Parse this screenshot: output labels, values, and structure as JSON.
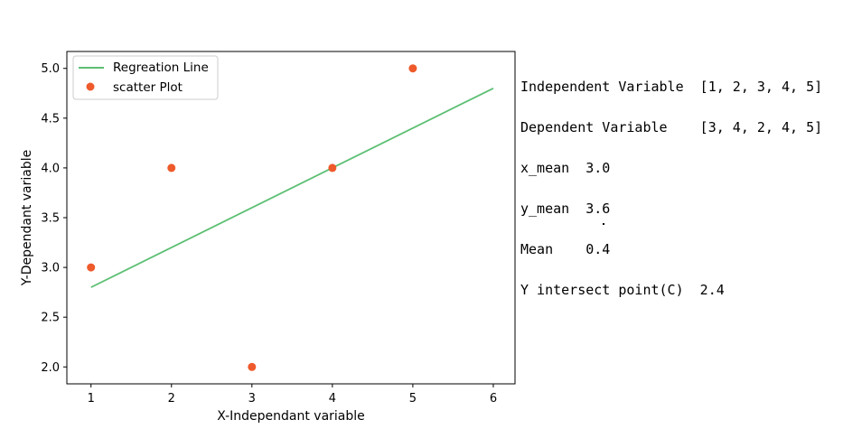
{
  "chart_data": {
    "type": "scatter",
    "title": "",
    "xlabel": "X-Independant variable",
    "ylabel": "Y-Dependant variable",
    "xlim": [
      0.7,
      6.27
    ],
    "ylim": [
      1.83,
      5.17
    ],
    "xticks": [
      "1",
      "2",
      "3",
      "4",
      "5",
      "6"
    ],
    "yticks": [
      "2.0",
      "2.5",
      "3.0",
      "3.5",
      "4.0",
      "4.5",
      "5.0"
    ],
    "grid": false,
    "legend_position": "top-left",
    "series": [
      {
        "name": "Regreation Line",
        "kind": "line",
        "color": "#5cbf73",
        "x": [
          1,
          6
        ],
        "y": [
          2.8,
          4.8
        ]
      },
      {
        "name": "scatter Plot",
        "kind": "scatter",
        "color": "#ee5a2b",
        "x": [
          1,
          2,
          3,
          4,
          5
        ],
        "y": [
          3,
          4,
          2,
          4,
          5
        ]
      }
    ]
  },
  "info_lines": [
    "Independent Variable  [1, 2, 3, 4, 5]",
    "Dependent Variable    [3, 4, 2, 4, 5]",
    "x_mean  3.0",
    "y_mean  3.6",
    "Mean    0.4",
    "Y intersect point(C)  2.4"
  ]
}
